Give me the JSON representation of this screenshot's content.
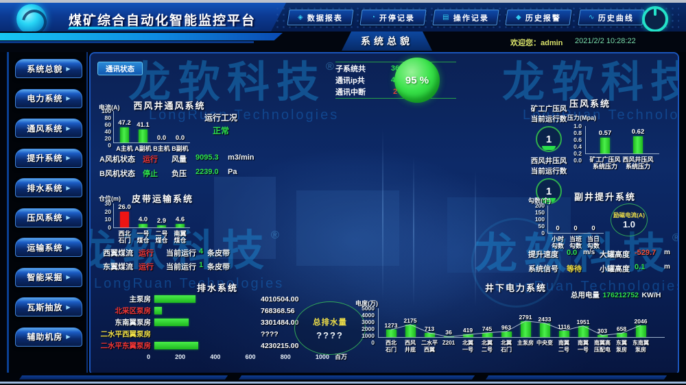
{
  "header": {
    "app_title": "煤矿综合自动化智能监控平台",
    "nav_buttons": [
      {
        "name": "data-report",
        "glyph": "◈",
        "label": "数据报表"
      },
      {
        "name": "start-stop-record",
        "glyph": "◔",
        "label": "开停记录"
      },
      {
        "name": "operation-record",
        "glyph": "▤",
        "label": "操作记录"
      },
      {
        "name": "history-alarm",
        "glyph": "◆",
        "label": "历史报警"
      },
      {
        "name": "history-curve",
        "glyph": "∿",
        "label": "历史曲线"
      }
    ]
  },
  "subheader": {
    "page_title": "系统总貌",
    "welcome": "欢迎您：admin",
    "datetime": "2021/2/2  10:28:22"
  },
  "sidebar": [
    {
      "label": "系统总貌"
    },
    {
      "label": "电力系统"
    },
    {
      "label": "通风系统"
    },
    {
      "label": "提升系统"
    },
    {
      "label": "排水系统"
    },
    {
      "label": "压风系统"
    },
    {
      "label": "运输系统"
    },
    {
      "label": "智能采掘"
    },
    {
      "label": "瓦斯抽放"
    },
    {
      "label": "辅助机房"
    }
  ],
  "watermark": {
    "cn": "龙软科技",
    "reg": "®",
    "en": "LongRuan Technologies"
  },
  "comm": {
    "chip": "通讯状态",
    "stats": [
      {
        "label": "子系统共",
        "value": "36",
        "unit": "个",
        "color": "#2ee44e"
      },
      {
        "label": "通讯ip共",
        "value": "45",
        "unit": "个",
        "color": "#2ee44e"
      },
      {
        "label": "通讯中断",
        "value": "2",
        "unit": "个",
        "color": "#f23636"
      }
    ],
    "gauge": "95 %"
  },
  "ventilation": {
    "title": "西风井通风系统",
    "ylabel": "电流(A)",
    "yticks": [
      "100",
      "80",
      "60",
      "40",
      "20",
      "0"
    ],
    "ymax": 100,
    "bars": [
      {
        "label1": "A主机",
        "value": "47.2"
      },
      {
        "label1": "A副机",
        "value": "41.1"
      },
      {
        "label1": "B主机",
        "value": "0.0"
      },
      {
        "label1": "B副机",
        "value": "0.0"
      }
    ],
    "condition_label": "运行工况",
    "condition_value": "正常",
    "rows": [
      {
        "k1": "A风机状态",
        "v1": "运行",
        "v1color": "#f23636",
        "k2": "风量",
        "v2": "9095.3",
        "unit": "m3/min"
      },
      {
        "k1": "B风机状态",
        "v1": "停止",
        "v1color": "#2ee44e",
        "k2": "负压",
        "v2": "2239.0",
        "unit": "Pa"
      }
    ]
  },
  "air": {
    "title": "压风系统",
    "groups": [
      {
        "name": "矿工广压风",
        "sub": "当前运行数",
        "count": "1"
      },
      {
        "name": "西风井压风",
        "sub": "当前运行数",
        "count": "1"
      }
    ],
    "ylabel": "压力(Mpa)",
    "yticks": [
      "1.0",
      "0.8",
      "0.6",
      "0.4",
      "0.2",
      "0.0"
    ],
    "ymax": 1.0,
    "bars": [
      {
        "label1": "矿工广压风",
        "label2": "系统压力",
        "value": "0.57"
      },
      {
        "label1": "西风井压风",
        "label2": "系统压力",
        "value": "0.62"
      }
    ]
  },
  "belt": {
    "title": "皮带运输系统",
    "ylabel": "仓位(m)",
    "yticks": [
      "30",
      "20",
      "10",
      "0"
    ],
    "ymax": 30,
    "bars": [
      {
        "label1": "西北",
        "label2": "石门",
        "value": "26.0",
        "color": "#ee1414"
      },
      {
        "label1": "一号",
        "label2": "煤仓",
        "value": "4.0"
      },
      {
        "label1": "二号",
        "label2": "煤仓",
        "value": "2.9"
      },
      {
        "label1": "南翼",
        "label2": "煤仓",
        "value": "4.6"
      }
    ],
    "rows": [
      {
        "name": "西翼煤流",
        "status": "运行",
        "mid": "当前运行",
        "count": "4",
        "tail": "条皮带"
      },
      {
        "name": "东翼煤流",
        "status": "运行",
        "mid": "当前运行",
        "count": "1",
        "tail": "条皮带"
      }
    ]
  },
  "hoist": {
    "title": "副井提升系统",
    "ylabel": "勾数(个)",
    "yticks": [
      "200",
      "150",
      "100",
      "50",
      "0"
    ],
    "ymax": 200,
    "bars": [
      {
        "label1": "小时",
        "label2": "勾数",
        "value": "0"
      },
      {
        "label1": "当班",
        "label2": "勾数",
        "value": "0"
      },
      {
        "label1": "当日",
        "label2": "勾数",
        "value": "0"
      }
    ],
    "circle_label": "励磁电流(A)",
    "circle_value": "1.0",
    "rows": [
      {
        "k1": "提升速度",
        "v1": "0.0",
        "v1color": "#2ee44e",
        "u1": "m/s",
        "k2": "大罐高度",
        "v2": "-529.7",
        "v2color": "#f25040",
        "u2": "m"
      },
      {
        "k1": "系统信号",
        "v1": "等待",
        "v1color": "#f0e048",
        "u1": "",
        "k2": "小罐高度",
        "v2": "0.1",
        "v2color": "#2ee44e",
        "u2": "m"
      }
    ]
  },
  "drainage": {
    "title": "排水系统",
    "rows": [
      {
        "label": "主泵房",
        "labelColor": "#f2f6fa",
        "value": "4010504.00",
        "pct": 23.7
      },
      {
        "label": "北采区泵房",
        "labelColor": "#f23636",
        "value": "768368.56",
        "pct": 4.5
      },
      {
        "label": "东南翼泵房",
        "labelColor": "#f2f6fa",
        "value": "3301484.00",
        "pct": 19.5
      },
      {
        "label": "二水平西翼泵房",
        "labelColor": "#f0e048",
        "value": "????",
        "pct": 0
      },
      {
        "label": "二水平东翼泵房",
        "labelColor": "#f23636",
        "value": "4230215.00",
        "pct": 25
      }
    ],
    "xticks": [
      "0",
      "200",
      "400",
      "600",
      "800",
      "1000"
    ],
    "xunit": "百万",
    "total_label": "总排水量",
    "total_value": "????"
  },
  "power": {
    "title": "井下电力系统",
    "total_label": "总用电量",
    "total_value": "176212752",
    "total_unit": "KW/H",
    "ylabel": "电度(万)",
    "yticks": [
      "5000",
      "4000",
      "3000",
      "2000",
      "1000",
      "0"
    ],
    "ymax": 5000,
    "bars": [
      {
        "label1": "西北",
        "label2": "石门",
        "value": "1273"
      },
      {
        "label1": "西风",
        "label2": "井底",
        "value": "2175"
      },
      {
        "label1": "二水平",
        "label2": "西翼",
        "value": "713"
      },
      {
        "label1": "Z201",
        "label2": "",
        "value": "36"
      },
      {
        "label1": "北翼",
        "label2": "一号",
        "value": "419"
      },
      {
        "label1": "北翼",
        "label2": "二号",
        "value": "745"
      },
      {
        "label1": "北翼",
        "label2": "石门",
        "value": "963"
      },
      {
        "label1": "主泵房",
        "label2": "",
        "value": "2791"
      },
      {
        "label1": "中央变",
        "label2": "",
        "value": "2433"
      },
      {
        "label1": "南翼",
        "label2": "二号",
        "value": "1116"
      },
      {
        "label1": "南翼",
        "label2": "一号",
        "value": "1951"
      },
      {
        "label1": "南翼高",
        "label2": "压配电",
        "value": "303"
      },
      {
        "label1": "东翼",
        "label2": "泵房",
        "value": "658"
      },
      {
        "label1": "东南翼",
        "label2": "泵房",
        "value": "2046"
      }
    ]
  }
}
